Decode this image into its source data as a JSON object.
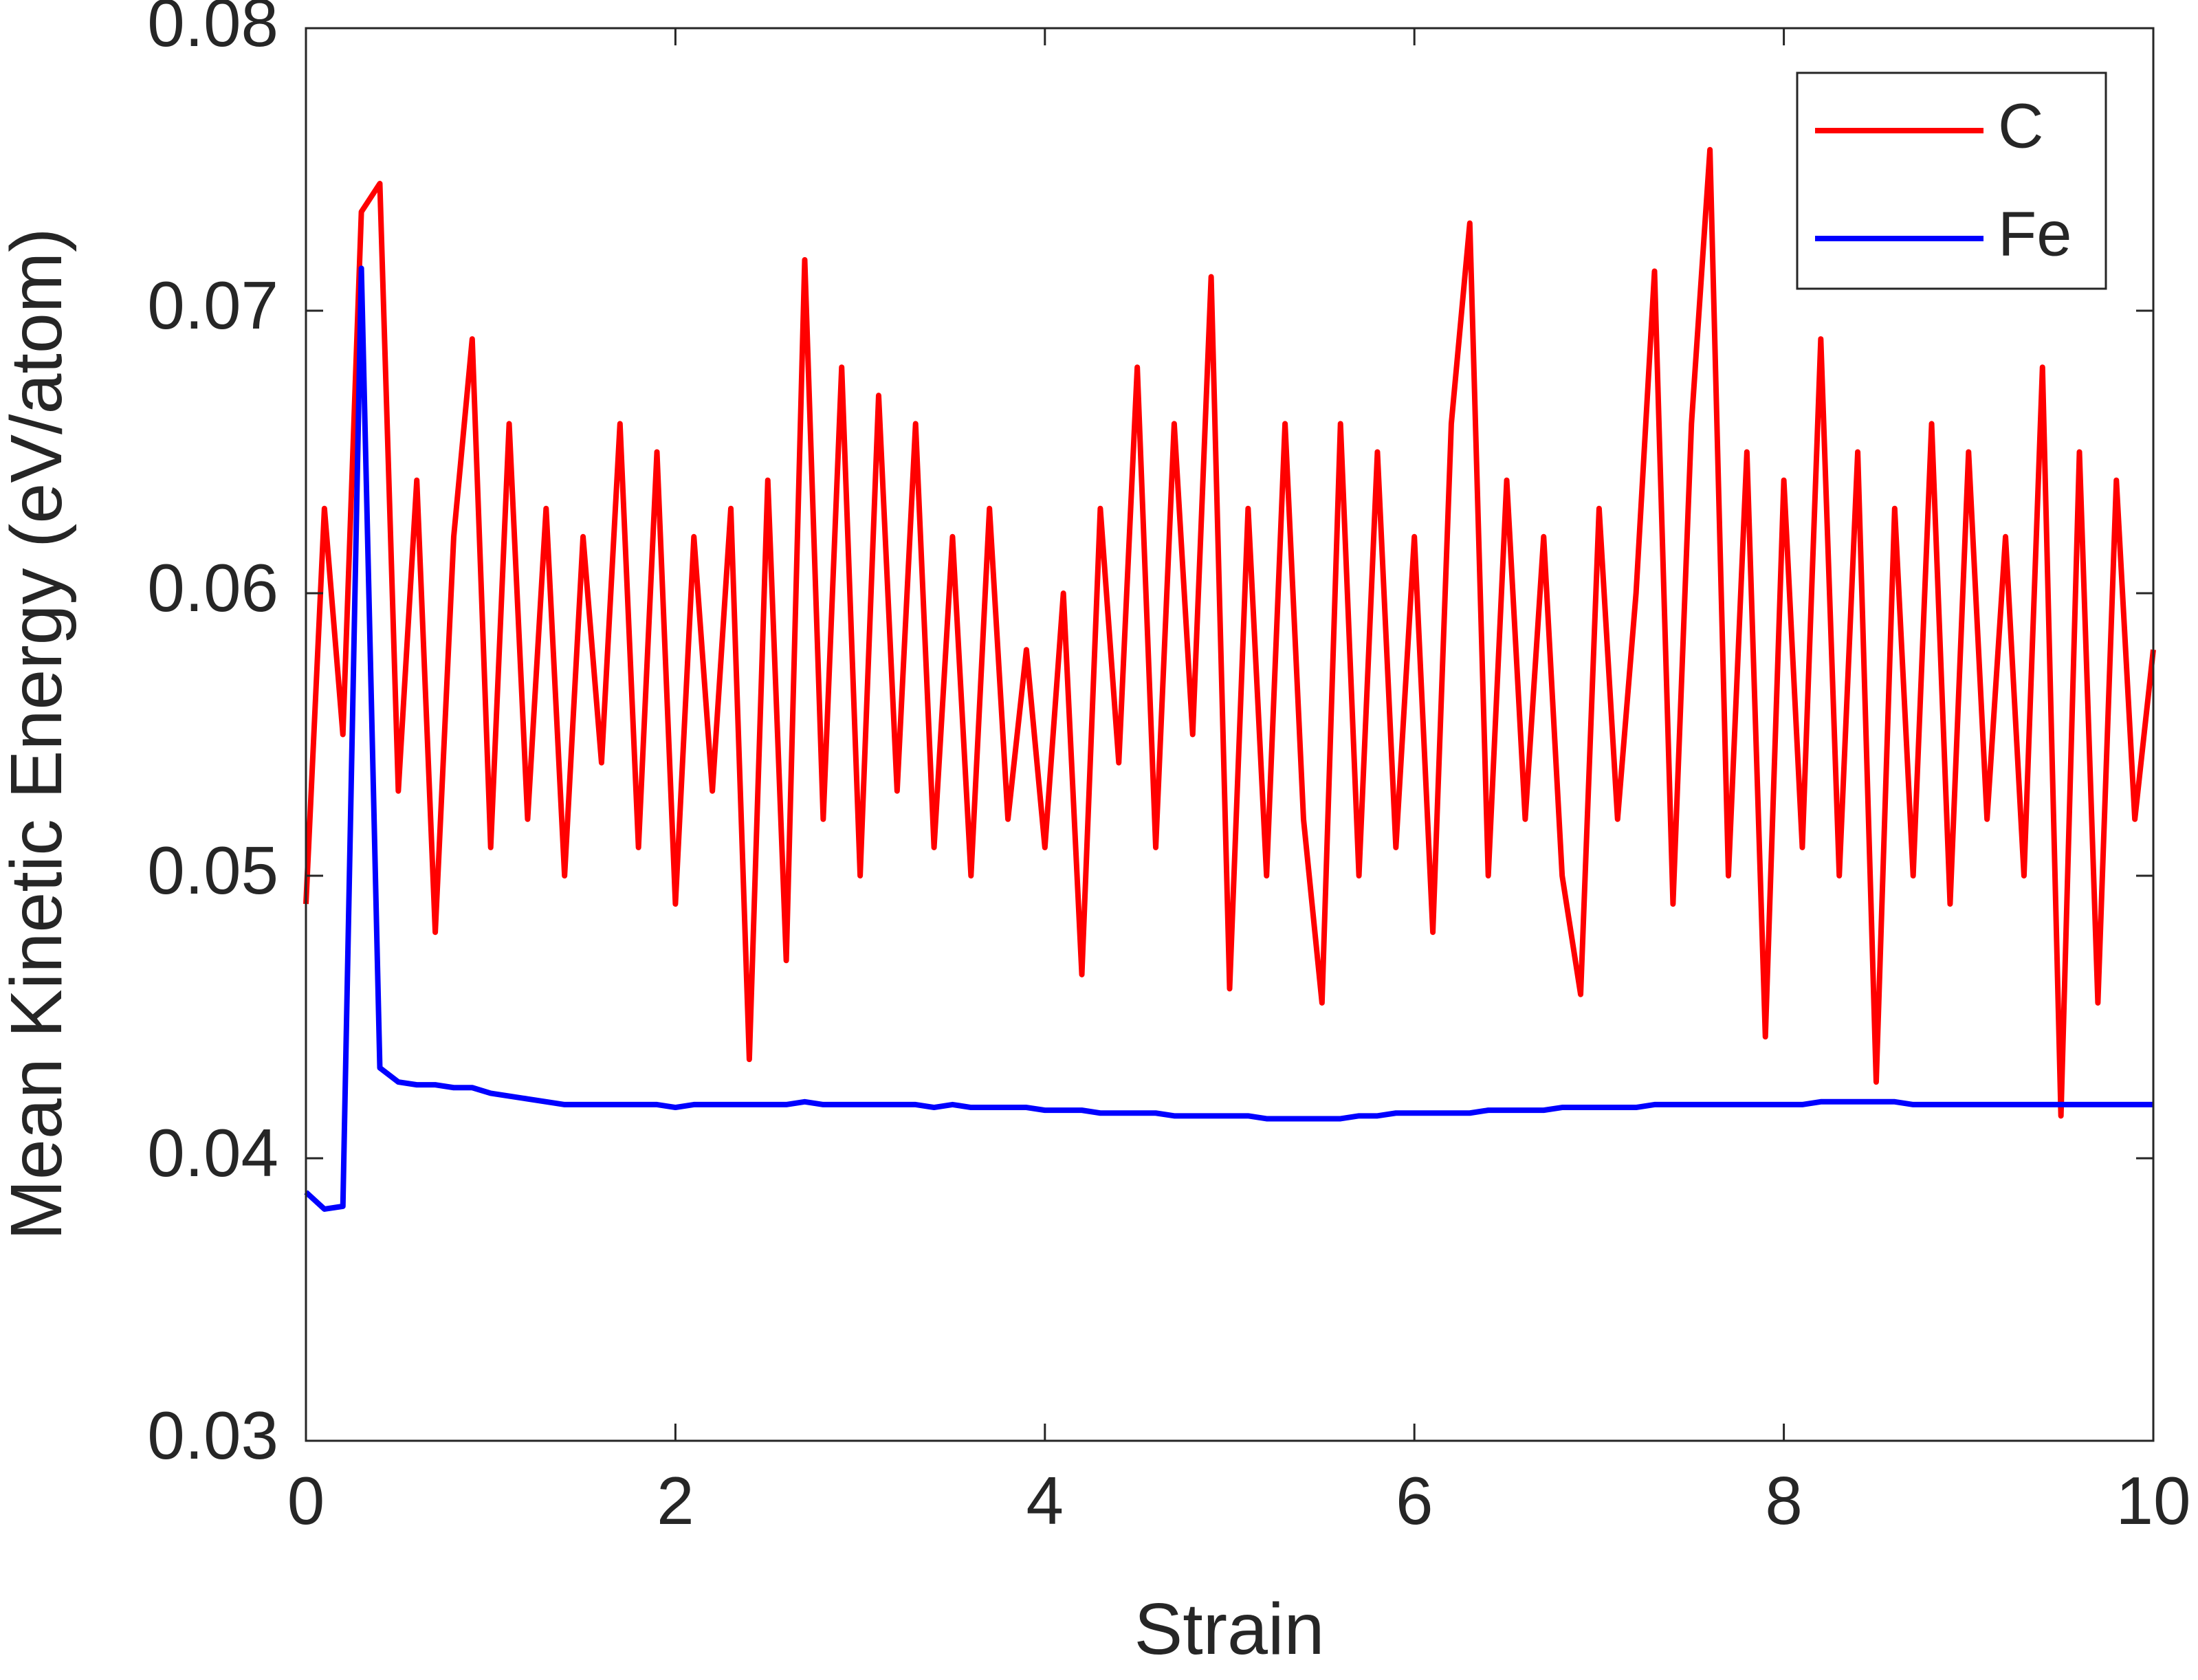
{
  "chart_data": {
    "type": "line",
    "x_label": "Strain",
    "y_label": "Mean Kinetic Energy (eV/atom)",
    "x": [
      0,
      0.1,
      0.2,
      0.3,
      0.4,
      0.5,
      0.6,
      0.7,
      0.8,
      0.9,
      1,
      1.1,
      1.2,
      1.3,
      1.4,
      1.5,
      1.6,
      1.7,
      1.8,
      1.9,
      2,
      2.1,
      2.2,
      2.3,
      2.4,
      2.5,
      2.6,
      2.7,
      2.8,
      2.9,
      3,
      3.1,
      3.2,
      3.3,
      3.4,
      3.5,
      3.6,
      3.7,
      3.8,
      3.9,
      4,
      4.1,
      4.2,
      4.3,
      4.4,
      4.5,
      4.6,
      4.7,
      4.8,
      4.9,
      5,
      5.1,
      5.2,
      5.3,
      5.4,
      5.5,
      5.6,
      5.7,
      5.8,
      5.9,
      6,
      6.1,
      6.2,
      6.3,
      6.4,
      6.5,
      6.6,
      6.7,
      6.8,
      6.9,
      7,
      7.1,
      7.2,
      7.3,
      7.4,
      7.5,
      7.6,
      7.7,
      7.8,
      7.9,
      8,
      8.1,
      8.2,
      8.3,
      8.4,
      8.5,
      8.6,
      8.7,
      8.8,
      8.9,
      9,
      9.1,
      9.2,
      9.3,
      9.4,
      9.5,
      9.6,
      9.7,
      9.8,
      9.9,
      10
    ],
    "series": [
      {
        "name": "C",
        "color": "#ff0000",
        "values": [
          0.049,
          0.063,
          0.055,
          0.0735,
          0.0745,
          0.053,
          0.064,
          0.048,
          0.062,
          0.069,
          0.051,
          0.066,
          0.052,
          0.063,
          0.05,
          0.062,
          0.054,
          0.066,
          0.051,
          0.065,
          0.049,
          0.062,
          0.053,
          0.063,
          0.0435,
          0.064,
          0.047,
          0.0718,
          0.052,
          0.068,
          0.05,
          0.067,
          0.053,
          0.066,
          0.051,
          0.062,
          0.05,
          0.063,
          0.052,
          0.058,
          0.051,
          0.06,
          0.0465,
          0.063,
          0.054,
          0.068,
          0.051,
          0.066,
          0.055,
          0.0712,
          0.046,
          0.063,
          0.05,
          0.066,
          0.052,
          0.0455,
          0.066,
          0.05,
          0.065,
          0.051,
          0.062,
          0.048,
          0.066,
          0.0731,
          0.05,
          0.064,
          0.052,
          0.062,
          0.05,
          0.0458,
          0.063,
          0.052,
          0.06,
          0.0714,
          0.049,
          0.066,
          0.0757,
          0.05,
          0.065,
          0.0443,
          0.064,
          0.051,
          0.069,
          0.05,
          0.065,
          0.0427,
          0.063,
          0.05,
          0.066,
          0.049,
          0.065,
          0.052,
          0.062,
          0.05,
          0.068,
          0.0415,
          0.065,
          0.0455,
          0.064,
          0.052,
          0.058
        ]
      },
      {
        "name": "Fe",
        "color": "#0000ff",
        "values": [
          0.0388,
          0.0382,
          0.0383,
          0.0715,
          0.0432,
          0.0427,
          0.0426,
          0.0426,
          0.0425,
          0.0425,
          0.0423,
          0.0422,
          0.0421,
          0.042,
          0.0419,
          0.0419,
          0.0419,
          0.0419,
          0.0419,
          0.0419,
          0.0418,
          0.0419,
          0.0419,
          0.0419,
          0.0419,
          0.0419,
          0.0419,
          0.042,
          0.0419,
          0.0419,
          0.0419,
          0.0419,
          0.0419,
          0.0419,
          0.0418,
          0.0419,
          0.0418,
          0.0418,
          0.0418,
          0.0418,
          0.0417,
          0.0417,
          0.0417,
          0.0416,
          0.0416,
          0.0416,
          0.0416,
          0.0415,
          0.0415,
          0.0415,
          0.0415,
          0.0415,
          0.0414,
          0.0414,
          0.0414,
          0.0414,
          0.0414,
          0.0415,
          0.0415,
          0.0416,
          0.0416,
          0.0416,
          0.0416,
          0.0416,
          0.0417,
          0.0417,
          0.0417,
          0.0417,
          0.0418,
          0.0418,
          0.0418,
          0.0418,
          0.0418,
          0.0419,
          0.0419,
          0.0419,
          0.0419,
          0.0419,
          0.0419,
          0.0419,
          0.0419,
          0.0419,
          0.042,
          0.042,
          0.042,
          0.042,
          0.042,
          0.0419,
          0.0419,
          0.0419,
          0.0419,
          0.0419,
          0.0419,
          0.0419,
          0.0419,
          0.0419,
          0.0419,
          0.0419,
          0.0419,
          0.0419,
          0.0419
        ]
      }
    ],
    "xlim": [
      0,
      10
    ],
    "xticks": [
      0,
      2,
      4,
      6,
      8,
      10
    ],
    "ylim": [
      0.03,
      0.08
    ],
    "yticks": [
      0.03,
      0.04,
      0.05,
      0.06,
      0.07,
      0.08
    ],
    "grid": false,
    "legend": "upper right"
  }
}
